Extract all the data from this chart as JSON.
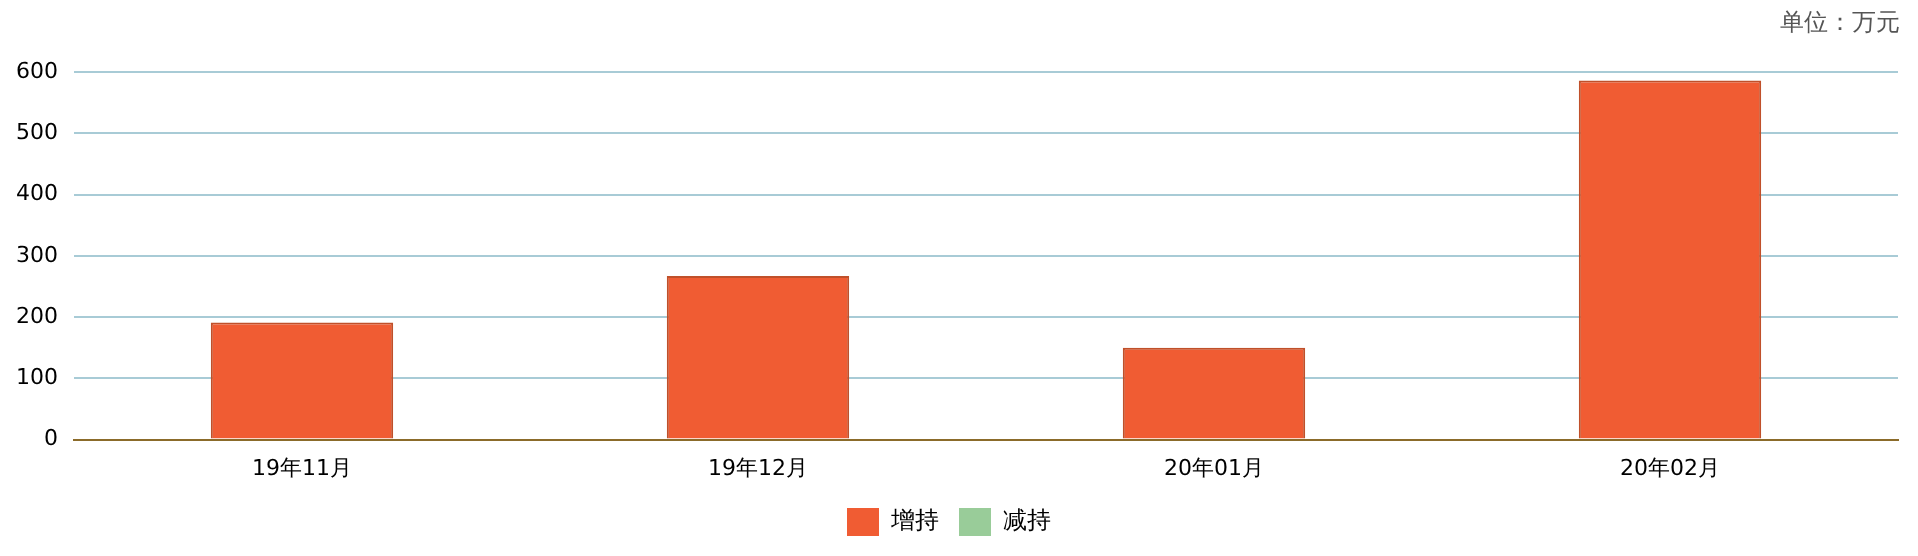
{
  "chart_data": {
    "type": "bar",
    "annotations": [
      "单位：万元"
    ],
    "categories": [
      "19年11月",
      "19年12月",
      "20年01月",
      "20年02月"
    ],
    "series": [
      {
        "name": "增持",
        "color": "#f05c33",
        "values": [
          191,
          267,
          150,
          586
        ]
      },
      {
        "name": "减持",
        "color": "#99cc99",
        "values": [
          null,
          null,
          null,
          null
        ]
      }
    ],
    "ylim": [
      0,
      600
    ],
    "yticks": [
      0,
      100,
      200,
      300,
      400,
      500,
      600
    ],
    "grid": "y",
    "legend": "bottom"
  }
}
